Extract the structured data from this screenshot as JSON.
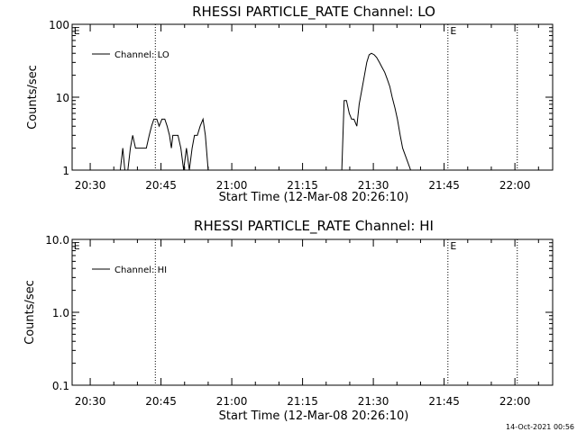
{
  "chart_data": [
    {
      "type": "line",
      "title": "RHESSI PARTICLE_RATE Channel: LO",
      "xlabel": "Start Time (12-Mar-08 20:26:10)",
      "ylabel": "Counts/sec",
      "yscale": "log",
      "ylim": [
        1,
        100
      ],
      "yticks": [
        "1",
        "10",
        "100"
      ],
      "xlim": [
        "20:26:10",
        "22:08:00"
      ],
      "xticks": [
        "20:30",
        "20:45",
        "21:00",
        "21:15",
        "21:30",
        "21:45",
        "22:00"
      ],
      "xtick_minutes": [
        30,
        45,
        60,
        75,
        90,
        105,
        120
      ],
      "grid": false,
      "legend": {
        "position": "top-left",
        "entries": [
          "Channel: LO"
        ]
      },
      "vlines_minutes": [
        43.8,
        105.8,
        120.5
      ],
      "vline_labels": [
        {
          "text": "E",
          "at_minutes": 26.5
        },
        {
          "text": "E",
          "at_minutes": 106.3
        }
      ],
      "series": [
        {
          "name": "Channel: LO",
          "x_minutes": [
            26.2,
            36.3,
            36.9,
            37.4,
            37.9,
            38.5,
            39.0,
            39.6,
            40.2,
            40.8,
            41.4,
            41.9,
            42.5,
            43.0,
            43.5,
            44.1,
            44.6,
            45.2,
            45.8,
            46.3,
            46.8,
            47.2,
            47.5,
            48.0,
            48.6,
            49.2,
            49.8,
            50.4,
            51.0,
            51.6,
            52.1,
            52.7,
            53.3,
            53.9,
            54.4,
            55.0,
            55.7,
            56.4,
            83.3,
            83.8,
            84.3,
            84.9,
            85.4,
            85.9,
            86.5,
            87.0,
            87.5,
            88.0,
            88.6,
            89.1,
            89.6,
            90.2,
            90.7,
            91.3,
            91.8,
            92.4,
            92.9,
            93.5,
            94.0,
            94.6,
            95.1,
            95.7,
            96.2,
            97.9,
            98.4,
            99.4,
            100.0,
            101.5
          ],
          "y": [
            0.9,
            0.9,
            2.0,
            0.9,
            0.9,
            2.0,
            3.0,
            2.0,
            2.0,
            2.0,
            2.0,
            2.0,
            3.0,
            4.0,
            5.0,
            5.0,
            4.0,
            5.0,
            5.0,
            4.0,
            3.0,
            2.0,
            3.0,
            3.0,
            3.0,
            2.0,
            1.0,
            2.0,
            1.0,
            2.0,
            3.0,
            3.0,
            4.0,
            5.0,
            3.0,
            1.0,
            0.9,
            0.9,
            0.9,
            9.0,
            9.0,
            6.0,
            5.0,
            5.0,
            4.0,
            8.0,
            12.0,
            18.0,
            30.0,
            38.0,
            40.0,
            38.0,
            35.0,
            30.0,
            26.0,
            22.0,
            18.0,
            14.0,
            10.0,
            7.0,
            5.0,
            3.0,
            2.0,
            1.0,
            0.9,
            1.0,
            0.9,
            1.0
          ]
        }
      ]
    },
    {
      "type": "line",
      "title": "RHESSI PARTICLE_RATE Channel: HI",
      "xlabel": "Start Time (12-Mar-08 20:26:10)",
      "ylabel": "Counts/sec",
      "yscale": "log",
      "ylim": [
        0.1,
        10
      ],
      "yticks": [
        "0.1",
        "1.0",
        "10.0"
      ],
      "xlim": [
        "20:26:10",
        "22:08:00"
      ],
      "xticks": [
        "20:30",
        "20:45",
        "21:00",
        "21:15",
        "21:30",
        "21:45",
        "22:00"
      ],
      "xtick_minutes": [
        30,
        45,
        60,
        75,
        90,
        105,
        120
      ],
      "grid": false,
      "legend": {
        "position": "top-left",
        "entries": [
          "Channel: HI"
        ]
      },
      "vlines_minutes": [
        43.8,
        105.8,
        120.5
      ],
      "vline_labels": [
        {
          "text": "E",
          "at_minutes": 26.5
        },
        {
          "text": "E",
          "at_minutes": 106.3
        }
      ],
      "series": [
        {
          "name": "Channel: HI",
          "x_minutes": [],
          "y": []
        }
      ]
    }
  ],
  "footer": {
    "timestamp": "14-Oct-2021 00:56"
  }
}
